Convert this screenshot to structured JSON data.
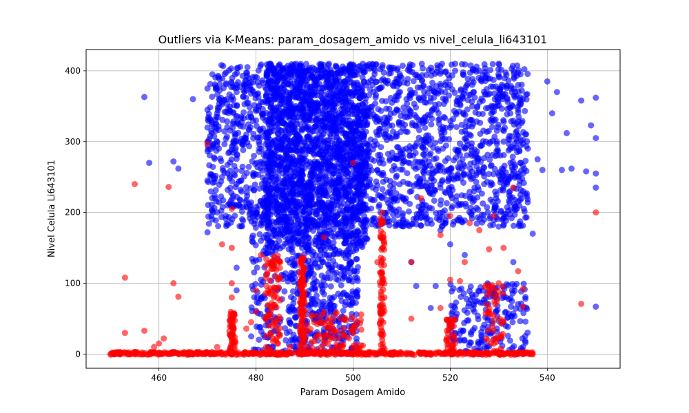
{
  "chart_data": {
    "type": "scatter",
    "title": "Outliers via K-Means: param_dosagem_amido vs nivel_celula_li643101",
    "xlabel": "Param Dosagem Amido",
    "ylabel": "Nivel Celula Li643101",
    "xlim": [
      445,
      555
    ],
    "ylim": [
      -20,
      430
    ],
    "xticks": [
      460,
      480,
      500,
      520,
      540
    ],
    "yticks": [
      0,
      100,
      200,
      300,
      400
    ],
    "grid": true,
    "series": [
      {
        "color": "#0000ff",
        "points": [
          [
            457,
            363
          ],
          [
            458,
            270
          ],
          [
            463,
            272
          ],
          [
            464,
            262
          ],
          [
            467,
            360
          ],
          [
            470,
            375
          ],
          [
            470,
            345
          ],
          [
            470,
            320
          ],
          [
            470,
            300
          ],
          [
            470,
            245
          ],
          [
            470,
            172
          ],
          [
            471,
            395
          ],
          [
            472,
            340
          ],
          [
            473,
            250
          ],
          [
            474,
            360
          ],
          [
            476,
            370
          ],
          [
            476,
            300
          ],
          [
            476,
            240
          ],
          [
            476,
            122
          ],
          [
            478,
            310
          ],
          [
            480,
            330
          ],
          [
            480,
            200
          ],
          [
            481,
            160
          ],
          [
            482,
            150
          ],
          [
            483,
            410
          ],
          [
            484,
            370
          ],
          [
            485,
            290
          ],
          [
            486,
            195
          ],
          [
            487,
            60
          ],
          [
            488,
            240
          ],
          [
            490,
            300
          ],
          [
            491,
            200
          ],
          [
            492,
            100
          ],
          [
            493,
            45
          ],
          [
            495,
            410
          ],
          [
            496,
            330
          ],
          [
            497,
            220
          ],
          [
            498,
            140
          ],
          [
            499,
            80
          ],
          [
            500,
            300
          ],
          [
            500,
            40
          ],
          [
            501,
            190
          ],
          [
            502,
            410
          ],
          [
            503,
            295
          ],
          [
            504,
            380
          ],
          [
            505,
            260
          ],
          [
            506,
            405
          ],
          [
            507,
            330
          ],
          [
            508,
            355
          ],
          [
            509,
            280
          ],
          [
            510,
            390
          ],
          [
            511,
            360
          ],
          [
            512,
            230
          ],
          [
            512,
            130
          ],
          [
            513,
            96
          ],
          [
            514,
            330
          ],
          [
            515,
            300
          ],
          [
            516,
            65
          ],
          [
            517,
            96
          ],
          [
            518,
            175
          ],
          [
            519,
            380
          ],
          [
            520,
            320
          ],
          [
            520,
            155
          ],
          [
            521,
            410
          ],
          [
            522,
            270
          ],
          [
            523,
            140
          ],
          [
            524,
            310
          ],
          [
            525,
            60
          ],
          [
            526,
            400
          ],
          [
            527,
            240
          ],
          [
            528,
            90
          ],
          [
            529,
            350
          ],
          [
            530,
            410
          ],
          [
            530,
            180
          ],
          [
            531,
            300
          ],
          [
            532,
            250
          ],
          [
            533,
            130
          ],
          [
            534,
            380
          ],
          [
            535,
            230
          ],
          [
            535,
            10
          ],
          [
            536,
            290
          ],
          [
            537,
            170
          ],
          [
            538,
            275
          ],
          [
            539,
            260
          ],
          [
            540,
            385
          ],
          [
            541,
            340
          ],
          [
            542,
            370
          ],
          [
            543,
            260
          ],
          [
            544,
            312
          ],
          [
            545,
            262
          ],
          [
            547,
            358
          ],
          [
            548,
            258
          ],
          [
            549,
            323
          ],
          [
            550,
            362
          ],
          [
            550,
            305
          ],
          [
            550,
            255
          ],
          [
            550,
            235
          ],
          [
            550,
            67
          ],
          [
            483,
            30
          ],
          [
            488,
            10
          ],
          [
            494,
            35
          ],
          [
            498,
            20
          ],
          [
            526,
            5
          ],
          [
            531,
            45
          ],
          [
            521,
            30
          ],
          [
            472,
            200
          ],
          [
            476,
            90
          ],
          [
            486,
            5
          ]
        ],
        "dense_regions": [
          {
            "x": [
              470,
              536
            ],
            "y": [
              180,
              410
            ],
            "n": 2200
          },
          {
            "x": [
              482,
              503
            ],
            "y": [
              150,
              410
            ],
            "n": 1600
          },
          {
            "x": [
              487,
              501
            ],
            "y": [
              0,
              150
            ],
            "n": 380
          },
          {
            "x": [
              479,
              487
            ],
            "y": [
              0,
              220
            ],
            "n": 160
          },
          {
            "x": [
              520,
              536
            ],
            "y": [
              0,
              100
            ],
            "n": 200
          }
        ]
      },
      {
        "color": "#ff0000",
        "points": [
          [
            450,
            0
          ],
          [
            451,
            0
          ],
          [
            452,
            0
          ],
          [
            453,
            108
          ],
          [
            453,
            30
          ],
          [
            454,
            0
          ],
          [
            455,
            240
          ],
          [
            456,
            0
          ],
          [
            457,
            33
          ],
          [
            458,
            0
          ],
          [
            459,
            10
          ],
          [
            460,
            15
          ],
          [
            461,
            22
          ],
          [
            462,
            236
          ],
          [
            462,
            0
          ],
          [
            463,
            100
          ],
          [
            464,
            81
          ],
          [
            465,
            0
          ],
          [
            468,
            0
          ],
          [
            470,
            297
          ],
          [
            472,
            10
          ],
          [
            473,
            155
          ],
          [
            475,
            205
          ],
          [
            475,
            150
          ],
          [
            475,
            50
          ],
          [
            475,
            100
          ],
          [
            475,
            80
          ],
          [
            475,
            20
          ],
          [
            478,
            36
          ],
          [
            479,
            45
          ],
          [
            480,
            90
          ],
          [
            480,
            60
          ],
          [
            481,
            140
          ],
          [
            482,
            125
          ],
          [
            483,
            85
          ],
          [
            484,
            40
          ],
          [
            485,
            130
          ],
          [
            487,
            10
          ],
          [
            489,
            60
          ],
          [
            489,
            40
          ],
          [
            490,
            20
          ],
          [
            492,
            45
          ],
          [
            494,
            165
          ],
          [
            496,
            35
          ],
          [
            498,
            28
          ],
          [
            500,
            270
          ],
          [
            502,
            12
          ],
          [
            505,
            130
          ],
          [
            506,
            200
          ],
          [
            506,
            150
          ],
          [
            506,
            100
          ],
          [
            506,
            60
          ],
          [
            506,
            20
          ],
          [
            506,
            5
          ],
          [
            508,
            0
          ],
          [
            510,
            0
          ],
          [
            511,
            0
          ],
          [
            512,
            130
          ],
          [
            512,
            50
          ],
          [
            514,
            220
          ],
          [
            516,
            0
          ],
          [
            518,
            168
          ],
          [
            518,
            65
          ],
          [
            519,
            0
          ],
          [
            520,
            195
          ],
          [
            520,
            105
          ],
          [
            520,
            42
          ],
          [
            521,
            15
          ],
          [
            522,
            103
          ],
          [
            523,
            130
          ],
          [
            524,
            185
          ],
          [
            525,
            0
          ],
          [
            526,
            175
          ],
          [
            528,
            148
          ],
          [
            529,
            195
          ],
          [
            530,
            100
          ],
          [
            531,
            150
          ],
          [
            533,
            235
          ],
          [
            534,
            117
          ],
          [
            535,
            92
          ],
          [
            535,
            67
          ],
          [
            537,
            0
          ],
          [
            547,
            71
          ],
          [
            550,
            200
          ],
          [
            476,
            0
          ],
          [
            492,
            0
          ],
          [
            500,
            0
          ],
          [
            514,
            0
          ],
          [
            526,
            0
          ],
          [
            534,
            0
          ]
        ],
        "dense_regions": [
          {
            "x": [
              450,
              537
            ],
            "y": [
              -1,
              3
            ],
            "n": 520
          },
          {
            "x": [
              474.5,
              475.8
            ],
            "y": [
              0,
              60
            ],
            "n": 60
          },
          {
            "x": [
              482,
              485
            ],
            "y": [
              0,
              140
            ],
            "n": 90
          },
          {
            "x": [
              489,
              490
            ],
            "y": [
              0,
              140
            ],
            "n": 90
          },
          {
            "x": [
              505.5,
              506.5
            ],
            "y": [
              0,
              200
            ],
            "n": 80
          },
          {
            "x": [
              519,
              521
            ],
            "y": [
              0,
              50
            ],
            "n": 40
          },
          {
            "x": [
              527,
              531
            ],
            "y": [
              0,
              100
            ],
            "n": 50
          },
          {
            "x": [
              490,
              502
            ],
            "y": [
              0,
              60
            ],
            "n": 90
          }
        ]
      }
    ]
  }
}
